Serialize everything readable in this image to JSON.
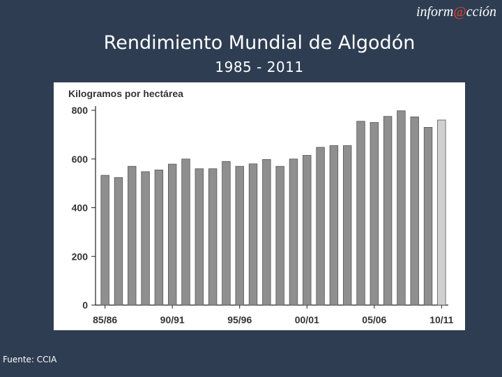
{
  "brand": {
    "prefix": "inform",
    "at": "@",
    "suffix": "cción"
  },
  "header": {
    "title": "Rendimiento Mundial de Algodón",
    "subtitle": "1985 - 2011"
  },
  "source": "Fuente: CCIA",
  "colors": {
    "background": "#2e3d52",
    "bar": "#8f8f8f",
    "bar_last": "#d0d0d0",
    "brand_accent": "#e8452c"
  },
  "chart_data": {
    "type": "bar",
    "title": "",
    "ylabel": "Kilogramos por hectárea",
    "xlabel": "",
    "ylim": [
      0,
      800
    ],
    "yticks": [
      0,
      200,
      400,
      600,
      800
    ],
    "grid": false,
    "tick_labels": [
      "85/86",
      "90/91",
      "95/96",
      "00/01",
      "05/06",
      "10/11"
    ],
    "tick_label_indices": [
      0,
      5,
      10,
      15,
      20,
      25
    ],
    "values": [
      533,
      524,
      570,
      548,
      555,
      579,
      600,
      560,
      560,
      590,
      570,
      580,
      598,
      570,
      600,
      615,
      648,
      655,
      655,
      755,
      750,
      775,
      798,
      773,
      730,
      760
    ],
    "highlight_last": true
  }
}
